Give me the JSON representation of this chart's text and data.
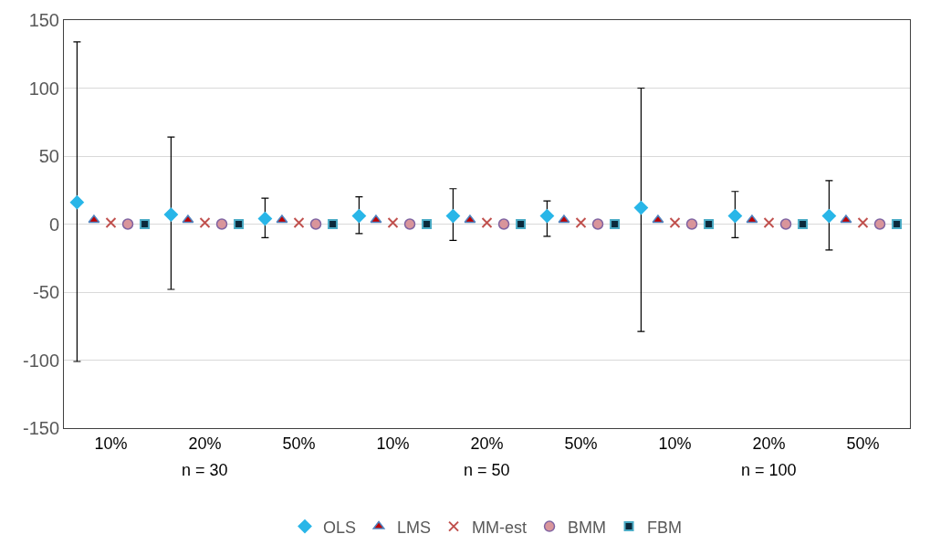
{
  "chart_data": {
    "type": "scatter",
    "categories": [
      "10%",
      "20%",
      "50%",
      "10%",
      "20%",
      "50%",
      "10%",
      "20%",
      "50%"
    ],
    "annotations": [
      "n = 30",
      "n = 50",
      "n = 100"
    ],
    "series": [
      {
        "name": "OLS",
        "color": "#29b6e8",
        "marker": "diamond",
        "values": [
          16,
          7,
          4,
          6,
          6,
          6,
          12,
          6,
          6
        ],
        "errors": [
          [
            -101,
            134
          ],
          [
            -48,
            64
          ],
          [
            -10,
            19
          ],
          [
            -7,
            20
          ],
          [
            -12,
            26
          ],
          [
            -9,
            17
          ],
          [
            -79,
            100
          ],
          [
            -10,
            24
          ],
          [
            -19,
            32
          ]
        ]
      },
      {
        "name": "LMS",
        "color": "#c00000",
        "marker": "triangle",
        "values": [
          3,
          3,
          3,
          3,
          3,
          3,
          3,
          3,
          3
        ]
      },
      {
        "name": "MM-est",
        "color": "#c0504d",
        "marker": "cross",
        "values": [
          1,
          1,
          1,
          1,
          1,
          1,
          1,
          1,
          1
        ]
      },
      {
        "name": "BMM",
        "color": "#d9959b",
        "marker": "circle",
        "values": [
          0,
          0,
          0,
          0,
          0,
          0,
          0,
          0,
          0
        ]
      },
      {
        "name": "FBM",
        "color": "#0b2a3c",
        "marker": "square",
        "values": [
          0,
          0,
          0,
          0,
          0,
          0,
          0,
          0,
          0
        ]
      }
    ],
    "ylim": [
      -150,
      150
    ],
    "yticks": [
      -150,
      -100,
      -50,
      0,
      50,
      100,
      150
    ],
    "grid": "y",
    "legend": "bottom"
  }
}
